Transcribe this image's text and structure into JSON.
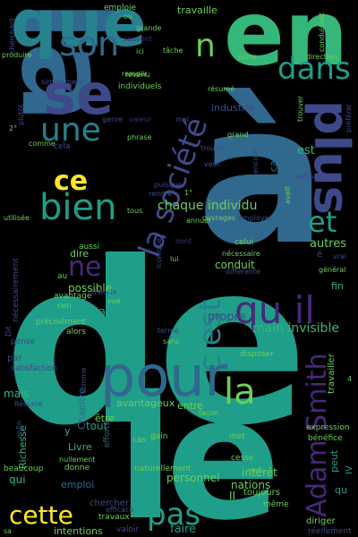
{
  "palette": {
    "teal": "#1f9e89",
    "green": "#35b779",
    "lime": "#6ece58",
    "yellow": "#fde725",
    "blue": "#31688e",
    "indigo": "#3e4989",
    "purple": "#482878",
    "darkpurple": "#440154",
    "cyan": "#26828e"
  },
  "words": [
    {
      "text": "de",
      "color": "teal"
    },
    {
      "text": "à",
      "color": "blue"
    },
    {
      "text": "le",
      "color": "teal"
    },
    {
      "text": "la",
      "color": "blue"
    },
    {
      "text": "en",
      "color": "green"
    },
    {
      "text": "que",
      "color": "cyan"
    },
    {
      "text": "se",
      "color": "indigo"
    },
    {
      "text": "son",
      "color": "blue"
    },
    {
      "text": "une",
      "color": "cyan"
    },
    {
      "text": "dans",
      "color": "teal"
    },
    {
      "text": "plus",
      "color": "indigo"
    },
    {
      "text": "la société",
      "color": "indigo"
    },
    {
      "text": "n",
      "color": "lime"
    },
    {
      "text": "ce",
      "color": "yellow"
    },
    {
      "text": "bien",
      "color": "teal"
    },
    {
      "text": "et",
      "color": "teal"
    },
    {
      "text": "ne",
      "color": "purple"
    },
    {
      "text": "qu il",
      "color": "purple"
    },
    {
      "text": "c est",
      "color": "cyan"
    },
    {
      "text": "pour",
      "color": "blue"
    },
    {
      "text": "la",
      "color": "lime"
    },
    {
      "text": "Adam Smith",
      "color": "purple"
    },
    {
      "text": "cette",
      "color": "yellow"
    },
    {
      "text": "pas",
      "color": "teal"
    },
    {
      "text": "faire",
      "color": "teal"
    },
    {
      "text": "chaque individu",
      "color": "lime"
    },
    {
      "text": "main invisible",
      "color": "green"
    },
    {
      "text": "propre",
      "color": "indigo"
    },
    {
      "text": "manière",
      "color": "teal"
    },
    {
      "text": "possible",
      "color": "lime"
    },
    {
      "text": "dire",
      "color": "lime"
    },
    {
      "text": "conduit",
      "color": "lime"
    },
    {
      "text": "autres",
      "color": "lime"
    },
    {
      "text": "fin",
      "color": "green"
    },
    {
      "text": "est",
      "color": "green"
    },
    {
      "text": "capital",
      "color": "blue"
    },
    {
      "text": "peut",
      "color": "teal"
    },
    {
      "text": "IV",
      "color": "teal"
    },
    {
      "text": "qu",
      "color": "teal"
    },
    {
      "text": "mais",
      "color": "green"
    },
    {
      "text": "qui",
      "color": "green"
    },
    {
      "text": "y",
      "color": "green"
    },
    {
      "text": "Livre",
      "color": "green"
    },
    {
      "text": "Richesse",
      "color": "green"
    },
    {
      "text": "Chapitre",
      "color": "blue"
    },
    {
      "text": "tout",
      "color": "teal"
    },
    {
      "text": "avantageux",
      "color": "lime"
    },
    {
      "text": "être",
      "color": "lime"
    },
    {
      "text": "entre",
      "color": "lime"
    },
    {
      "text": "personnel",
      "color": "lime"
    },
    {
      "text": "nations",
      "color": "lime"
    },
    {
      "text": "intérêt",
      "color": "lime"
    },
    {
      "text": "II",
      "color": "lime"
    },
    {
      "text": "emploi",
      "color": "blue"
    },
    {
      "text": "intentions",
      "color": "lime"
    },
    {
      "text": "travaux",
      "color": "lime"
    },
    {
      "text": "chercher",
      "color": "indigo"
    },
    {
      "text": "diriger",
      "color": "lime"
    },
    {
      "text": "réellement",
      "color": "indigo"
    },
    {
      "text": "toujours",
      "color": "lime"
    },
    {
      "text": "même",
      "color": "lime"
    },
    {
      "text": "travailler",
      "color": "lime"
    },
    {
      "text": "expression",
      "color": "lime"
    },
    {
      "text": "bénéfice",
      "color": "lime"
    },
    {
      "text": "cesse",
      "color": "lime"
    },
    {
      "text": "met",
      "color": "lime"
    },
    {
      "text": "naturellement",
      "color": "lime"
    },
    {
      "text": "donne",
      "color": "lime"
    },
    {
      "text": "efforts",
      "color": "blue"
    },
    {
      "text": "valoir",
      "color": "indigo"
    },
    {
      "text": "efficace",
      "color": "indigo"
    },
    {
      "text": "gain",
      "color": "lime"
    },
    {
      "text": "cas",
      "color": "lime"
    },
    {
      "text": "façon",
      "color": "lime"
    },
    {
      "text": "disposer",
      "color": "lime"
    },
    {
      "text": "satisfaction",
      "color": "indigo"
    },
    {
      "text": "par",
      "color": "indigo"
    },
    {
      "text": "pense",
      "color": "indigo"
    },
    {
      "text": "Dit",
      "color": "indigo"
    },
    {
      "text": "nécessairement",
      "color": "indigo"
    },
    {
      "text": "rien",
      "color": "lime"
    },
    {
      "text": "vue",
      "color": "lime"
    },
    {
      "text": "avantage",
      "color": "lime"
    },
    {
      "text": "théorie",
      "color": "indigo"
    },
    {
      "text": "précisément",
      "color": "lime"
    },
    {
      "text": "alors",
      "color": "lime"
    },
    {
      "text": "terme",
      "color": "indigo"
    },
    {
      "text": "sans",
      "color": "lime"
    },
    {
      "text": "aussi",
      "color": "lime"
    },
    {
      "text": "au",
      "color": "lime"
    },
    {
      "text": "iconique",
      "color": "indigo"
    },
    {
      "text": "lui",
      "color": "lime"
    },
    {
      "text": "dont",
      "color": "purple"
    },
    {
      "text": "celui",
      "color": "lime"
    },
    {
      "text": "nécessaire",
      "color": "lime"
    },
    {
      "text": "différente",
      "color": "indigo"
    },
    {
      "text": "vrai",
      "color": "indigo"
    },
    {
      "text": "général",
      "color": "lime"
    },
    {
      "text": "annuel",
      "color": "lime"
    },
    {
      "text": "utilisée",
      "color": "lime"
    },
    {
      "text": "tous",
      "color": "lime"
    },
    {
      "text": "ouvrages",
      "color": "lime"
    },
    {
      "text": "employer",
      "color": "indigo"
    },
    {
      "text": "puisque",
      "color": "indigo"
    },
    {
      "text": "rendre",
      "color": "indigo"
    },
    {
      "text": "phrase",
      "color": "lime"
    },
    {
      "text": "trouve",
      "color": "indigo"
    },
    {
      "text": "veut",
      "color": "indigo"
    },
    {
      "text": "encore",
      "color": "indigo"
    },
    {
      "text": "avait",
      "color": "lime"
    },
    {
      "text": "nationale",
      "color": "indigo"
    },
    {
      "text": "grand",
      "color": "lime"
    },
    {
      "text": "cela",
      "color": "indigo"
    },
    {
      "text": "comme",
      "color": "lime"
    },
    {
      "text": "genre",
      "color": "indigo"
    },
    {
      "text": "valeur",
      "color": "purple"
    },
    {
      "text": "mal",
      "color": "indigo"
    },
    {
      "text": "industrie",
      "color": "indigo"
    },
    {
      "text": "résumé",
      "color": "lime"
    },
    {
      "text": "soins",
      "color": "lime"
    },
    {
      "text": "trouver",
      "color": "lime"
    },
    {
      "text": "préférer",
      "color": "indigo"
    },
    {
      "text": "individuels",
      "color": "lime"
    },
    {
      "text": "remplir",
      "color": "lime"
    },
    {
      "text": "revenu",
      "color": "lime"
    },
    {
      "text": "simplement",
      "color": "indigo"
    },
    {
      "text": "produire",
      "color": "lime"
    },
    {
      "text": "plutôt",
      "color": "indigo"
    },
    {
      "text": "cherchant",
      "color": "indigo"
    },
    {
      "text": "emploie",
      "color": "lime"
    },
    {
      "text": "grande",
      "color": "lime"
    },
    {
      "text": "souvent",
      "color": "purple"
    },
    {
      "text": "ici",
      "color": "lime"
    },
    {
      "text": "ou",
      "color": "lime"
    },
    {
      "text": "tâche",
      "color": "lime"
    },
    {
      "text": "direction",
      "color": "lime"
    },
    {
      "text": "conduisent",
      "color": "lime"
    },
    {
      "text": "travaille",
      "color": "lime"
    },
    {
      "text": "Résumé",
      "color": "indigo"
    },
    {
      "text": "enfin",
      "color": "indigo"
    },
    {
      "text": "beaucoup",
      "color": "lime"
    },
    {
      "text": "nullement",
      "color": "lime"
    },
    {
      "text": "somme",
      "color": "indigo"
    },
    {
      "text": "sa",
      "color": "lime"
    },
    {
      "text": "non",
      "color": "lime"
    },
    {
      "text": "2°",
      "color": "lime"
    },
    {
      "text": "1°",
      "color": "lime"
    },
    {
      "text": "é",
      "color": "indigo"
    },
    {
      "text": "4",
      "color": "lime"
    }
  ]
}
